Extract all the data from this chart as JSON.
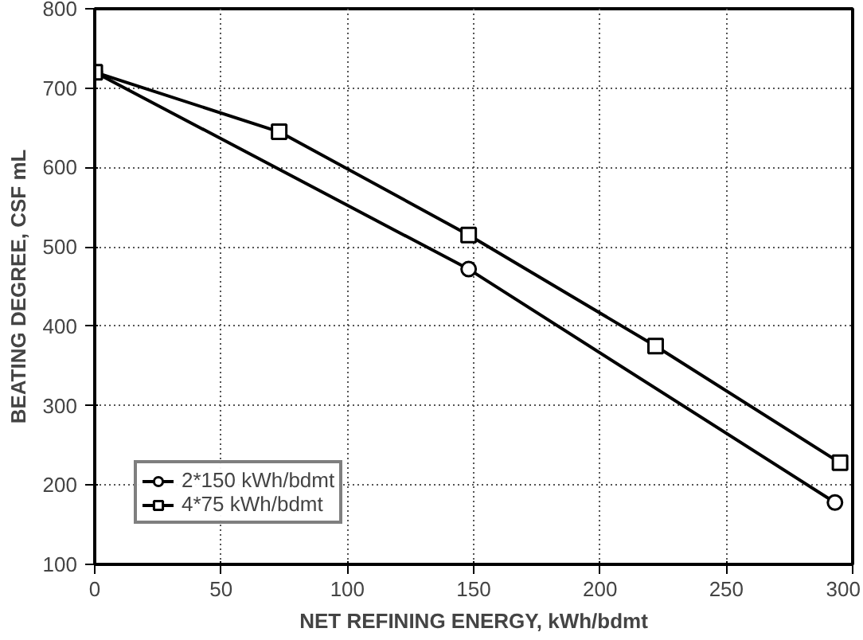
{
  "chart_data": {
    "type": "line",
    "xlabel": "NET REFINING ENERGY, kWh/bdmt",
    "ylabel": "BEATING DEGREE, CSF mL",
    "xlim": [
      0,
      300
    ],
    "xticks": [
      0,
      50,
      100,
      150,
      200,
      250,
      300
    ],
    "ylim": [
      100,
      800
    ],
    "yticks": [
      100,
      200,
      300,
      400,
      500,
      600,
      700,
      800
    ],
    "grid": true,
    "legend": "bottom left",
    "line_style": "solid",
    "series": [
      {
        "name": "2*150 kWh/bdmt",
        "color": "#000000",
        "marker": "circle",
        "x": [
          0,
          148,
          293
        ],
        "values": [
          720,
          472,
          178
        ]
      },
      {
        "name": "4*75 kWh/bdmt",
        "color": "#000000",
        "marker": "square",
        "x": [
          0,
          73,
          148,
          222,
          295
        ],
        "values": [
          720,
          645,
          515,
          375,
          228
        ]
      }
    ]
  }
}
